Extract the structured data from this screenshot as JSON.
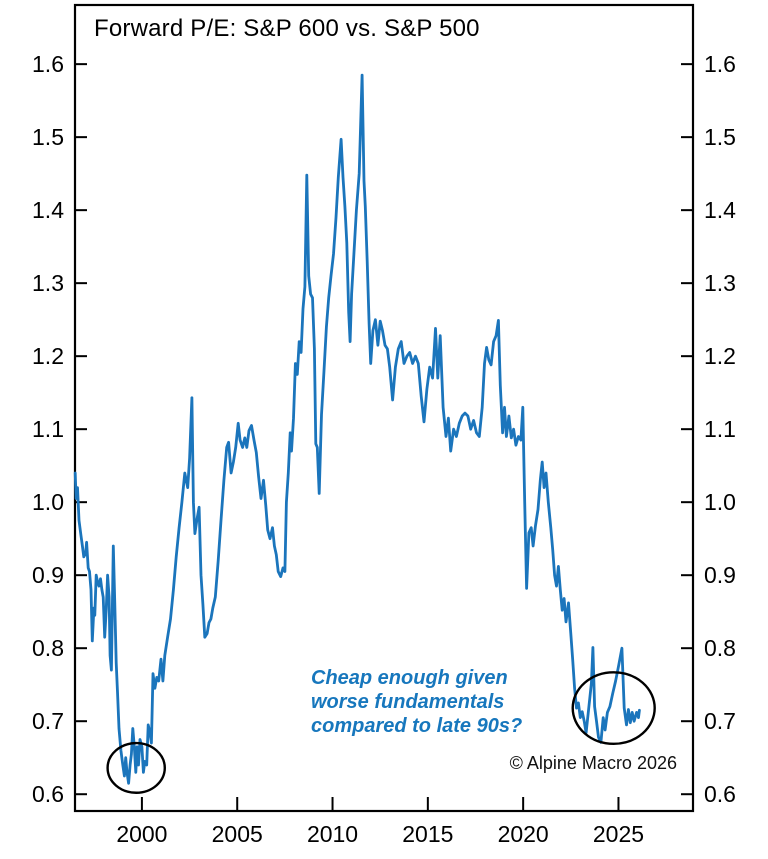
{
  "header": {
    "title": "Forward P/E: S&P 600 vs. S&P 500"
  },
  "annotation": {
    "line1": "Cheap enough given",
    "line2": "worse fundamentals",
    "line3": "compared to late 90s?",
    "color": "#1777bd"
  },
  "copyright": "© Alpine Macro 2026",
  "colors": {
    "line": "#1b75bc",
    "axis": "#000000",
    "ellipse": "#000000",
    "tick_text": "#000000"
  },
  "chart_data": {
    "type": "line",
    "title": "Forward P/E: S&P 600 vs. S&P 500",
    "xlabel": "",
    "ylabel": "",
    "xlim": [
      1996.49,
      2028.91
    ],
    "ylim": [
      0.577,
      1.681
    ],
    "x_ticks": [
      2000,
      2005,
      2010,
      2015,
      2020,
      2025
    ],
    "y_ticks": [
      0.6,
      0.7,
      0.8,
      0.9,
      1.0,
      1.1,
      1.2,
      1.3,
      1.4,
      1.5,
      1.6
    ],
    "y_ticks_on_both_sides": true,
    "grid": false,
    "legend": "none",
    "series": [
      {
        "name": "S&P 600 forward P/E relative to S&P 500",
        "color": "#1b75bc",
        "points": [
          [
            1996.5,
            1.04
          ],
          [
            1996.55,
            1.005
          ],
          [
            1996.62,
            1.02
          ],
          [
            1996.7,
            0.975
          ],
          [
            1996.8,
            0.955
          ],
          [
            1996.88,
            0.94
          ],
          [
            1996.95,
            0.925
          ],
          [
            1997.05,
            0.93
          ],
          [
            1997.1,
            0.945
          ],
          [
            1997.18,
            0.91
          ],
          [
            1997.25,
            0.905
          ],
          [
            1997.33,
            0.88
          ],
          [
            1997.4,
            0.81
          ],
          [
            1997.48,
            0.855
          ],
          [
            1997.53,
            0.845
          ],
          [
            1997.6,
            0.9
          ],
          [
            1997.68,
            0.89
          ],
          [
            1997.75,
            0.885
          ],
          [
            1997.83,
            0.895
          ],
          [
            1997.9,
            0.88
          ],
          [
            1997.97,
            0.87
          ],
          [
            1998.05,
            0.815
          ],
          [
            1998.13,
            0.855
          ],
          [
            1998.2,
            0.9
          ],
          [
            1998.28,
            0.87
          ],
          [
            1998.33,
            0.79
          ],
          [
            1998.4,
            0.77
          ],
          [
            1998.5,
            0.94
          ],
          [
            1998.58,
            0.86
          ],
          [
            1998.65,
            0.78
          ],
          [
            1998.72,
            0.74
          ],
          [
            1998.8,
            0.69
          ],
          [
            1998.9,
            0.66
          ],
          [
            1999.0,
            0.64
          ],
          [
            1999.08,
            0.625
          ],
          [
            1999.15,
            0.65
          ],
          [
            1999.22,
            0.63
          ],
          [
            1999.3,
            0.615
          ],
          [
            1999.38,
            0.64
          ],
          [
            1999.45,
            0.655
          ],
          [
            1999.52,
            0.69
          ],
          [
            1999.6,
            0.665
          ],
          [
            1999.68,
            0.63
          ],
          [
            1999.75,
            0.665
          ],
          [
            1999.82,
            0.64
          ],
          [
            1999.9,
            0.675
          ],
          [
            2000.0,
            0.665
          ],
          [
            2000.08,
            0.63
          ],
          [
            2000.15,
            0.645
          ],
          [
            2000.25,
            0.64
          ],
          [
            2000.33,
            0.695
          ],
          [
            2000.42,
            0.685
          ],
          [
            2000.5,
            0.67
          ],
          [
            2000.58,
            0.765
          ],
          [
            2000.68,
            0.745
          ],
          [
            2000.78,
            0.76
          ],
          [
            2000.88,
            0.755
          ],
          [
            2001.0,
            0.785
          ],
          [
            2001.1,
            0.755
          ],
          [
            2001.2,
            0.79
          ],
          [
            2001.35,
            0.815
          ],
          [
            2001.5,
            0.84
          ],
          [
            2001.65,
            0.88
          ],
          [
            2001.8,
            0.925
          ],
          [
            2001.95,
            0.965
          ],
          [
            2002.1,
            1.0
          ],
          [
            2002.25,
            1.04
          ],
          [
            2002.4,
            1.02
          ],
          [
            2002.5,
            1.06
          ],
          [
            2002.62,
            1.143
          ],
          [
            2002.7,
            1.0
          ],
          [
            2002.78,
            0.957
          ],
          [
            2002.88,
            0.975
          ],
          [
            2003.0,
            0.993
          ],
          [
            2003.1,
            0.9
          ],
          [
            2003.2,
            0.86
          ],
          [
            2003.3,
            0.815
          ],
          [
            2003.42,
            0.82
          ],
          [
            2003.52,
            0.835
          ],
          [
            2003.62,
            0.84
          ],
          [
            2003.72,
            0.855
          ],
          [
            2003.85,
            0.87
          ],
          [
            2004.0,
            0.92
          ],
          [
            2004.15,
            0.975
          ],
          [
            2004.3,
            1.03
          ],
          [
            2004.45,
            1.075
          ],
          [
            2004.55,
            1.082
          ],
          [
            2004.68,
            1.04
          ],
          [
            2004.8,
            1.055
          ],
          [
            2004.92,
            1.075
          ],
          [
            2005.05,
            1.108
          ],
          [
            2005.15,
            1.085
          ],
          [
            2005.28,
            1.075
          ],
          [
            2005.4,
            1.088
          ],
          [
            2005.5,
            1.075
          ],
          [
            2005.62,
            1.098
          ],
          [
            2005.75,
            1.105
          ],
          [
            2005.88,
            1.085
          ],
          [
            2006.0,
            1.068
          ],
          [
            2006.12,
            1.035
          ],
          [
            2006.25,
            1.005
          ],
          [
            2006.38,
            1.03
          ],
          [
            2006.5,
            0.995
          ],
          [
            2006.6,
            0.962
          ],
          [
            2006.72,
            0.95
          ],
          [
            2006.85,
            0.965
          ],
          [
            2006.95,
            0.94
          ],
          [
            2007.05,
            0.928
          ],
          [
            2007.15,
            0.905
          ],
          [
            2007.28,
            0.898
          ],
          [
            2007.4,
            0.91
          ],
          [
            2007.5,
            0.905
          ],
          [
            2007.58,
            1.0
          ],
          [
            2007.68,
            1.04
          ],
          [
            2007.78,
            1.095
          ],
          [
            2007.85,
            1.07
          ],
          [
            2007.95,
            1.115
          ],
          [
            2008.05,
            1.19
          ],
          [
            2008.15,
            1.175
          ],
          [
            2008.25,
            1.22
          ],
          [
            2008.35,
            1.205
          ],
          [
            2008.45,
            1.265
          ],
          [
            2008.55,
            1.295
          ],
          [
            2008.65,
            1.448
          ],
          [
            2008.75,
            1.31
          ],
          [
            2008.85,
            1.285
          ],
          [
            2008.95,
            1.28
          ],
          [
            2009.05,
            1.21
          ],
          [
            2009.12,
            1.08
          ],
          [
            2009.2,
            1.075
          ],
          [
            2009.3,
            1.012
          ],
          [
            2009.42,
            1.12
          ],
          [
            2009.55,
            1.18
          ],
          [
            2009.68,
            1.24
          ],
          [
            2009.8,
            1.28
          ],
          [
            2009.92,
            1.31
          ],
          [
            2010.05,
            1.34
          ],
          [
            2010.18,
            1.39
          ],
          [
            2010.3,
            1.445
          ],
          [
            2010.45,
            1.497
          ],
          [
            2010.55,
            1.445
          ],
          [
            2010.65,
            1.405
          ],
          [
            2010.75,
            1.355
          ],
          [
            2010.85,
            1.26
          ],
          [
            2010.92,
            1.22
          ],
          [
            2011.0,
            1.285
          ],
          [
            2011.12,
            1.34
          ],
          [
            2011.25,
            1.4
          ],
          [
            2011.4,
            1.45
          ],
          [
            2011.55,
            1.585
          ],
          [
            2011.65,
            1.44
          ],
          [
            2011.72,
            1.405
          ],
          [
            2011.82,
            1.33
          ],
          [
            2011.92,
            1.245
          ],
          [
            2012.0,
            1.19
          ],
          [
            2012.12,
            1.235
          ],
          [
            2012.25,
            1.25
          ],
          [
            2012.38,
            1.215
          ],
          [
            2012.5,
            1.248
          ],
          [
            2012.62,
            1.235
          ],
          [
            2012.75,
            1.215
          ],
          [
            2012.88,
            1.21
          ],
          [
            2013.0,
            1.185
          ],
          [
            2013.15,
            1.14
          ],
          [
            2013.3,
            1.185
          ],
          [
            2013.45,
            1.21
          ],
          [
            2013.6,
            1.22
          ],
          [
            2013.75,
            1.19
          ],
          [
            2013.9,
            1.2
          ],
          [
            2014.05,
            1.205
          ],
          [
            2014.2,
            1.19
          ],
          [
            2014.35,
            1.2
          ],
          [
            2014.5,
            1.19
          ],
          [
            2014.65,
            1.145
          ],
          [
            2014.8,
            1.11
          ],
          [
            2014.95,
            1.155
          ],
          [
            2015.1,
            1.185
          ],
          [
            2015.25,
            1.17
          ],
          [
            2015.4,
            1.238
          ],
          [
            2015.52,
            1.17
          ],
          [
            2015.65,
            1.228
          ],
          [
            2015.8,
            1.13
          ],
          [
            2015.95,
            1.09
          ],
          [
            2016.08,
            1.115
          ],
          [
            2016.2,
            1.07
          ],
          [
            2016.35,
            1.1
          ],
          [
            2016.5,
            1.09
          ],
          [
            2016.65,
            1.108
          ],
          [
            2016.8,
            1.118
          ],
          [
            2016.95,
            1.122
          ],
          [
            2017.1,
            1.118
          ],
          [
            2017.25,
            1.1
          ],
          [
            2017.4,
            1.112
          ],
          [
            2017.55,
            1.095
          ],
          [
            2017.7,
            1.09
          ],
          [
            2017.85,
            1.13
          ],
          [
            2017.97,
            1.19
          ],
          [
            2018.08,
            1.212
          ],
          [
            2018.2,
            1.195
          ],
          [
            2018.32,
            1.188
          ],
          [
            2018.45,
            1.22
          ],
          [
            2018.58,
            1.228
          ],
          [
            2018.7,
            1.249
          ],
          [
            2018.8,
            1.16
          ],
          [
            2018.92,
            1.095
          ],
          [
            2019.02,
            1.13
          ],
          [
            2019.12,
            1.09
          ],
          [
            2019.25,
            1.118
          ],
          [
            2019.38,
            1.088
          ],
          [
            2019.5,
            1.1
          ],
          [
            2019.62,
            1.078
          ],
          [
            2019.75,
            1.09
          ],
          [
            2019.88,
            1.085
          ],
          [
            2019.98,
            1.13
          ],
          [
            2020.08,
            1.0
          ],
          [
            2020.18,
            0.882
          ],
          [
            2020.3,
            0.958
          ],
          [
            2020.42,
            0.965
          ],
          [
            2020.52,
            0.94
          ],
          [
            2020.65,
            0.968
          ],
          [
            2020.78,
            0.99
          ],
          [
            2020.9,
            1.03
          ],
          [
            2021.0,
            1.055
          ],
          [
            2021.1,
            1.02
          ],
          [
            2021.2,
            1.04
          ],
          [
            2021.32,
            1.0
          ],
          [
            2021.45,
            0.965
          ],
          [
            2021.55,
            0.935
          ],
          [
            2021.65,
            0.9
          ],
          [
            2021.75,
            0.885
          ],
          [
            2021.85,
            0.912
          ],
          [
            2021.95,
            0.88
          ],
          [
            2022.05,
            0.852
          ],
          [
            2022.15,
            0.868
          ],
          [
            2022.25,
            0.836
          ],
          [
            2022.38,
            0.862
          ],
          [
            2022.5,
            0.82
          ],
          [
            2022.6,
            0.784
          ],
          [
            2022.7,
            0.745
          ],
          [
            2022.8,
            0.718
          ],
          [
            2022.9,
            0.725
          ],
          [
            2023.0,
            0.705
          ],
          [
            2023.1,
            0.713
          ],
          [
            2023.2,
            0.7
          ],
          [
            2023.3,
            0.684
          ],
          [
            2023.45,
            0.72
          ],
          [
            2023.58,
            0.752
          ],
          [
            2023.66,
            0.801
          ],
          [
            2023.75,
            0.72
          ],
          [
            2023.85,
            0.7
          ],
          [
            2023.95,
            0.678
          ],
          [
            2024.08,
            0.671
          ],
          [
            2024.2,
            0.705
          ],
          [
            2024.3,
            0.688
          ],
          [
            2024.42,
            0.712
          ],
          [
            2024.55,
            0.72
          ],
          [
            2024.7,
            0.738
          ],
          [
            2024.85,
            0.755
          ],
          [
            2025.0,
            0.775
          ],
          [
            2025.18,
            0.8
          ],
          [
            2025.3,
            0.718
          ],
          [
            2025.42,
            0.695
          ],
          [
            2025.52,
            0.716
          ],
          [
            2025.62,
            0.698
          ],
          [
            2025.72,
            0.712
          ],
          [
            2025.82,
            0.7
          ],
          [
            2025.95,
            0.712
          ],
          [
            2026.05,
            0.705
          ],
          [
            2026.1,
            0.715
          ]
        ]
      }
    ],
    "ellipse_annotations": [
      {
        "cx_year": 1999.7,
        "cy_value": 0.636,
        "rx_years": 1.5,
        "ry_value": 0.034
      },
      {
        "cx_year": 2024.75,
        "cy_value": 0.718,
        "rx_years": 2.15,
        "ry_value": 0.049
      }
    ]
  }
}
